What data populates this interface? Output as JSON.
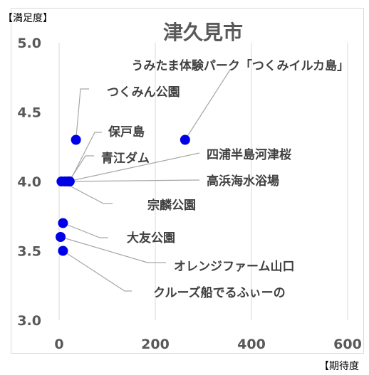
{
  "chart_data": {
    "type": "scatter",
    "title": "津久見市",
    "ylabel": "【満足度】",
    "xlabel": "【期待度",
    "xlim": [
      0,
      600
    ],
    "ylim": [
      3.0,
      5.0
    ],
    "xticks": [
      "0",
      "200",
      "400",
      "600"
    ],
    "yticks": [
      "3.0",
      "3.5",
      "4.0",
      "4.5",
      "5.0"
    ],
    "grid": "vertical",
    "colors": {
      "point": "#0000e6",
      "leader": "#a6a6a6",
      "grid": "#d9d9d9"
    },
    "points": [
      {
        "label": "うみたま体験パーク「つくみイルカ島」",
        "x": 262,
        "y": 4.3
      },
      {
        "label": "つくみん公園",
        "x": 35,
        "y": 4.3
      },
      {
        "label": "保戸島",
        "x": 22,
        "y": 4.0
      },
      {
        "label": "青江ダム",
        "x": 20,
        "y": 4.0
      },
      {
        "label": "四浦半島河津桜",
        "x": 18,
        "y": 4.0
      },
      {
        "label": "高浜海水浴場",
        "x": 12,
        "y": 4.0
      },
      {
        "label": "宗麟公園",
        "x": 5,
        "y": 4.0
      },
      {
        "label": "大友公園",
        "x": 8,
        "y": 3.7
      },
      {
        "label": "オレンジファーム山口",
        "x": 3,
        "y": 3.6
      },
      {
        "label": "クルーズ船でるふぃーの",
        "x": 8,
        "y": 3.5
      }
    ]
  }
}
